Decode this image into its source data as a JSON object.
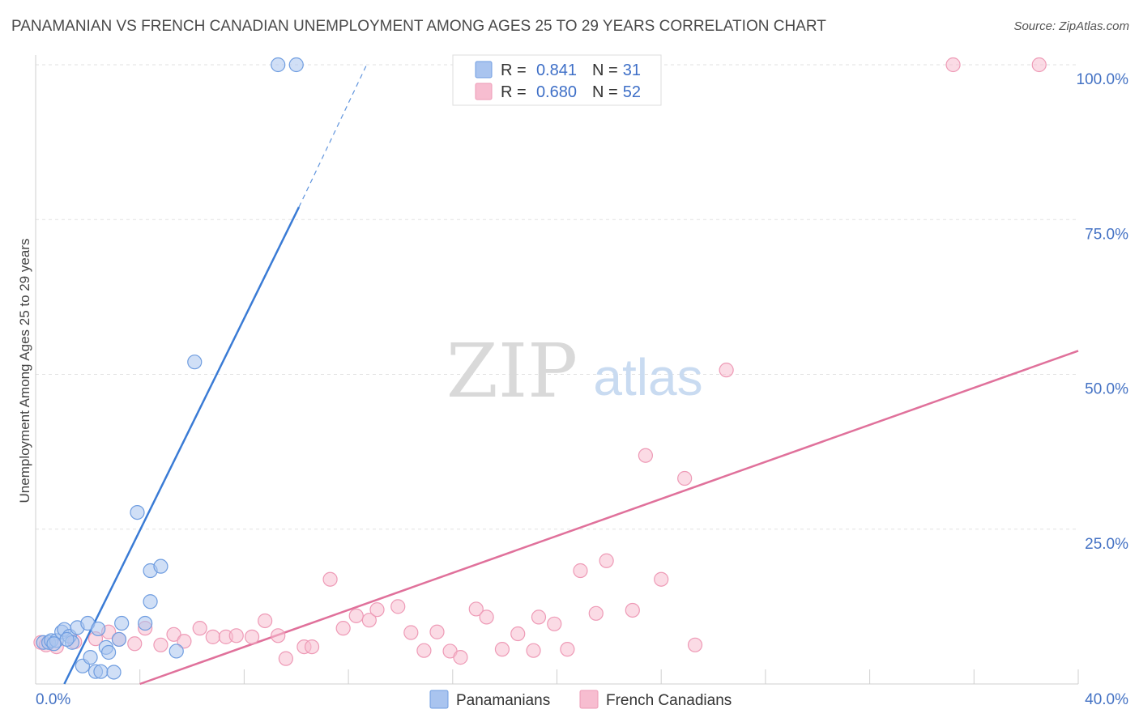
{
  "chart_data": {
    "type": "scatter",
    "title": "PANAMANIAN VS FRENCH CANADIAN UNEMPLOYMENT AMONG AGES 25 TO 29 YEARS CORRELATION CHART",
    "source": "Source: ZipAtlas.com",
    "watermark": {
      "zip": "ZIP",
      "atlas": "atlas"
    },
    "xlabel": "",
    "ylabel": "Unemployment Among Ages 25 to 29 years",
    "xlim": [
      0,
      40
    ],
    "ylim": [
      0,
      100
    ],
    "x_tick_labels": [
      {
        "value": 0,
        "label": "0.0%"
      },
      {
        "value": 40,
        "label": "40.0%"
      }
    ],
    "y_tick_labels": [
      {
        "value": 25,
        "label": "25.0%"
      },
      {
        "value": 50,
        "label": "50.0%"
      },
      {
        "value": 75,
        "label": "75.0%"
      },
      {
        "value": 100,
        "label": "100.0%"
      }
    ],
    "x_gridlines": [
      4,
      8,
      12,
      16,
      20,
      24,
      28,
      32,
      36,
      40
    ],
    "y_gridlines": [
      25,
      50,
      75,
      100
    ],
    "legend_stats": [
      {
        "r_label": "R =",
        "r_value": "0.841",
        "n_label": "N =",
        "n_value": "31",
        "color": "#a9c4ef",
        "stroke": "#6f9de0"
      },
      {
        "r_label": "R =",
        "r_value": "0.680",
        "n_label": "N =",
        "n_value": "52",
        "color": "#f7bdd0",
        "stroke": "#ee9ab6"
      }
    ],
    "series": [
      {
        "name": "Panamanians",
        "color": "#a9c4ef",
        "stroke": "#6f9de0",
        "line_color": "#3a7bd5",
        "trend": {
          "x_start": 1.1,
          "y_start": 0,
          "x_end": 10.1,
          "y_end": 77,
          "dash_x_end": 12.7,
          "dash_y_end": 100
        },
        "points": [
          [
            0.3,
            6.7
          ],
          [
            0.5,
            6.7
          ],
          [
            0.6,
            7.0
          ],
          [
            0.8,
            7.0
          ],
          [
            1.0,
            8.4
          ],
          [
            1.1,
            8.8
          ],
          [
            1.3,
            7.7
          ],
          [
            1.4,
            6.7
          ],
          [
            1.6,
            9.1
          ],
          [
            1.8,
            2.9
          ],
          [
            2.0,
            9.8
          ],
          [
            2.1,
            4.3
          ],
          [
            2.3,
            2.0
          ],
          [
            2.4,
            8.9
          ],
          [
            2.5,
            2.0
          ],
          [
            2.7,
            5.9
          ],
          [
            2.8,
            5.1
          ],
          [
            3.0,
            1.9
          ],
          [
            3.2,
            7.2
          ],
          [
            3.3,
            9.8
          ],
          [
            3.9,
            27.7
          ],
          [
            4.2,
            9.8
          ],
          [
            4.4,
            18.3
          ],
          [
            4.4,
            13.3
          ],
          [
            4.8,
            19.0
          ],
          [
            5.4,
            5.3
          ],
          [
            6.1,
            52.0
          ],
          [
            9.3,
            100.0
          ],
          [
            10.0,
            100.0
          ],
          [
            0.7,
            6.5
          ],
          [
            1.2,
            7.2
          ]
        ]
      },
      {
        "name": "French Canadians",
        "color": "#f7bdd0",
        "stroke": "#ee9ab6",
        "line_color": "#e0719b",
        "trend": {
          "x_start": 4.0,
          "y_start": 0,
          "x_end": 40.0,
          "y_end": 53.8
        },
        "points": [
          [
            0.2,
            6.7
          ],
          [
            0.4,
            6.3
          ],
          [
            0.8,
            6.0
          ],
          [
            1.5,
            6.8
          ],
          [
            2.3,
            7.3
          ],
          [
            2.8,
            8.4
          ],
          [
            3.2,
            7.2
          ],
          [
            3.8,
            6.5
          ],
          [
            4.2,
            9.0
          ],
          [
            4.8,
            6.3
          ],
          [
            5.3,
            8.0
          ],
          [
            5.7,
            6.9
          ],
          [
            6.3,
            9.0
          ],
          [
            6.8,
            7.6
          ],
          [
            7.3,
            7.6
          ],
          [
            7.7,
            7.8
          ],
          [
            8.3,
            7.6
          ],
          [
            8.8,
            10.2
          ],
          [
            9.3,
            7.8
          ],
          [
            9.6,
            4.1
          ],
          [
            10.3,
            6.0
          ],
          [
            10.6,
            6.0
          ],
          [
            11.3,
            16.9
          ],
          [
            11.8,
            9.0
          ],
          [
            12.3,
            11.0
          ],
          [
            12.8,
            10.3
          ],
          [
            13.1,
            12.0
          ],
          [
            13.9,
            12.5
          ],
          [
            14.4,
            8.3
          ],
          [
            14.9,
            5.4
          ],
          [
            15.4,
            8.4
          ],
          [
            15.9,
            5.3
          ],
          [
            16.3,
            4.3
          ],
          [
            16.9,
            12.1
          ],
          [
            17.3,
            10.8
          ],
          [
            17.9,
            5.6
          ],
          [
            18.5,
            8.1
          ],
          [
            19.1,
            5.4
          ],
          [
            19.3,
            10.8
          ],
          [
            19.9,
            9.7
          ],
          [
            20.4,
            5.6
          ],
          [
            20.9,
            18.3
          ],
          [
            21.5,
            11.4
          ],
          [
            21.9,
            19.9
          ],
          [
            22.9,
            11.9
          ],
          [
            23.4,
            36.9
          ],
          [
            24.0,
            16.9
          ],
          [
            24.9,
            33.2
          ],
          [
            25.3,
            6.3
          ],
          [
            26.5,
            50.7
          ],
          [
            35.2,
            100.0
          ],
          [
            38.5,
            100.0
          ]
        ]
      }
    ]
  }
}
